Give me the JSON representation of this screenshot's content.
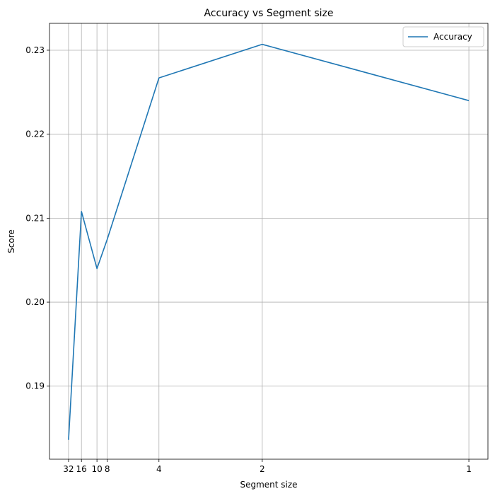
{
  "chart_data": {
    "type": "line",
    "title": "Accuracy vs Segment size",
    "xlabel": "Segment size",
    "ylabel": "Score",
    "x_scale": "reciprocal",
    "x": [
      32,
      16,
      10,
      8,
      4,
      2,
      1
    ],
    "x_tick_labels": [
      "32",
      "16",
      "10",
      "8",
      "4",
      "2",
      "1"
    ],
    "y_ticks": [
      0.19,
      0.2,
      0.21,
      0.22,
      0.23
    ],
    "y_tick_labels": [
      "0.19",
      "0.20",
      "0.21",
      "0.22",
      "0.23"
    ],
    "ylim": [
      0.1813,
      0.2332
    ],
    "grid": true,
    "legend_position": "top-right",
    "series": [
      {
        "name": "Accuracy",
        "color": "#1f77b4",
        "values": [
          0.1836,
          0.2108,
          0.204,
          0.2075,
          0.2267,
          0.2307,
          0.224
        ]
      }
    ]
  }
}
